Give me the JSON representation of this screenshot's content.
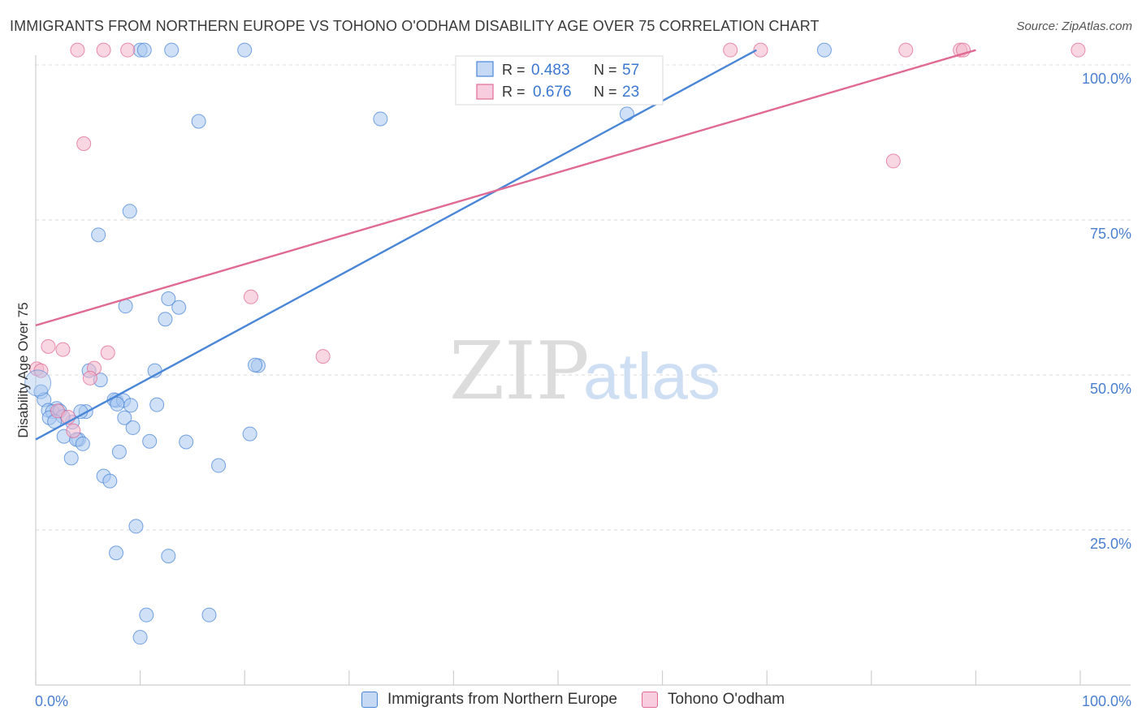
{
  "title": "IMMIGRANTS FROM NORTHERN EUROPE VS TOHONO O'ODHAM DISABILITY AGE OVER 75 CORRELATION CHART",
  "source": "Source: ZipAtlas.com",
  "watermark": {
    "zip": "ZIP",
    "atlas": "atlas"
  },
  "colors": {
    "blue": "#4a86d8",
    "blue_fill": "#a9c8f0",
    "pink": "#e06a93",
    "pink_fill": "#f4b6cb",
    "axis_text": "#4a7fd0",
    "grid": "#d9d9d9"
  },
  "legend_top": [
    {
      "r_label": "R =",
      "r_value": "0.483",
      "n_label": "N =",
      "n_value": "57"
    },
    {
      "r_label": "R =",
      "r_value": "0.676",
      "n_label": "N =",
      "n_value": "23"
    }
  ],
  "legend_bottom": [
    "Immigrants from Northern Europe",
    "Tohono O'odham"
  ],
  "chart_data": {
    "type": "scatter",
    "title": "IMMIGRANTS FROM NORTHERN EUROPE VS TOHONO O'ODHAM DISABILITY AGE OVER 75 CORRELATION CHART",
    "xlabel": "",
    "ylabel": "Disability Age Over 75",
    "xlim": [
      0,
      100
    ],
    "ylim": [
      0,
      100
    ],
    "x_tick_labels": [
      "0.0%",
      "100.0%"
    ],
    "y_tick_labels": [
      "25.0%",
      "50.0%",
      "75.0%",
      "100.0%"
    ],
    "y_ticks": [
      25,
      50,
      75,
      100
    ],
    "series": [
      {
        "name": "Immigrants from Northern Europe",
        "color": "#4a86d8",
        "R": 0.483,
        "N": 57,
        "trend": [
          [
            0,
            39.6
          ],
          [
            69,
            102.4
          ]
        ],
        "points": [
          [
            10,
            102.4
          ],
          [
            10.4,
            102.4
          ],
          [
            13,
            102.4
          ],
          [
            20,
            102.4
          ],
          [
            75.5,
            102.4
          ],
          [
            15.6,
            90.9
          ],
          [
            33,
            91.3
          ],
          [
            56.6,
            92.1
          ],
          [
            9,
            76.4
          ],
          [
            6,
            72.6
          ],
          [
            12.7,
            62.3
          ],
          [
            8.6,
            61.1
          ],
          [
            13.7,
            60.9
          ],
          [
            12.4,
            59
          ],
          [
            21.3,
            51.5
          ],
          [
            21,
            51.6
          ],
          [
            11.4,
            50.7
          ],
          [
            5.1,
            50.7
          ],
          [
            6.2,
            49.2
          ],
          [
            0.5,
            47.3
          ],
          [
            0.8,
            46
          ],
          [
            7.7,
            45.9
          ],
          [
            7.5,
            46
          ],
          [
            8.4,
            45.9
          ],
          [
            11.6,
            45.2
          ],
          [
            7.8,
            45.3
          ],
          [
            2,
            44.6
          ],
          [
            4.8,
            44.1
          ],
          [
            1.2,
            44.3
          ],
          [
            1.6,
            44.1
          ],
          [
            2.3,
            44.2
          ],
          [
            3.5,
            42.4
          ],
          [
            2.6,
            43.3
          ],
          [
            1.3,
            43.1
          ],
          [
            8.5,
            43.1
          ],
          [
            1.8,
            42.5
          ],
          [
            9.3,
            41.5
          ],
          [
            2.7,
            40.1
          ],
          [
            4.1,
            39.6
          ],
          [
            3.9,
            39.6
          ],
          [
            4.5,
            38.9
          ],
          [
            10.9,
            39.3
          ],
          [
            14.4,
            39.2
          ],
          [
            20.5,
            40.5
          ],
          [
            8,
            37.6
          ],
          [
            3.4,
            36.6
          ],
          [
            17.5,
            35.4
          ],
          [
            6.5,
            33.7
          ],
          [
            7.1,
            32.9
          ],
          [
            9.6,
            25.6
          ],
          [
            7.7,
            21.3
          ],
          [
            12.7,
            20.8
          ],
          [
            10.6,
            11.3
          ],
          [
            16.6,
            11.3
          ],
          [
            10,
            7.7
          ],
          [
            4.3,
            44.1
          ],
          [
            9.1,
            45.1
          ]
        ]
      },
      {
        "name": "Tohono O'odham",
        "color": "#e06a93",
        "R": 0.676,
        "N": 23,
        "trend": [
          [
            0,
            58
          ],
          [
            90,
            102.4
          ]
        ],
        "points": [
          [
            4,
            102.4
          ],
          [
            6.5,
            102.4
          ],
          [
            8.8,
            102.4
          ],
          [
            66.5,
            102.4
          ],
          [
            69.4,
            102.4
          ],
          [
            83.3,
            102.4
          ],
          [
            88.5,
            102.4
          ],
          [
            88.8,
            102.4
          ],
          [
            99.8,
            102.4
          ],
          [
            4.6,
            87.3
          ],
          [
            82.1,
            84.5
          ],
          [
            20.6,
            62.6
          ],
          [
            27.5,
            53
          ],
          [
            1.2,
            54.6
          ],
          [
            2.6,
            54.1
          ],
          [
            6.9,
            53.6
          ],
          [
            5.6,
            51.1
          ],
          [
            5.2,
            49.5
          ],
          [
            0.1,
            51
          ],
          [
            0.5,
            50.7
          ],
          [
            2.1,
            44.2
          ],
          [
            3.1,
            43.2
          ],
          [
            3.6,
            41
          ]
        ]
      }
    ]
  }
}
